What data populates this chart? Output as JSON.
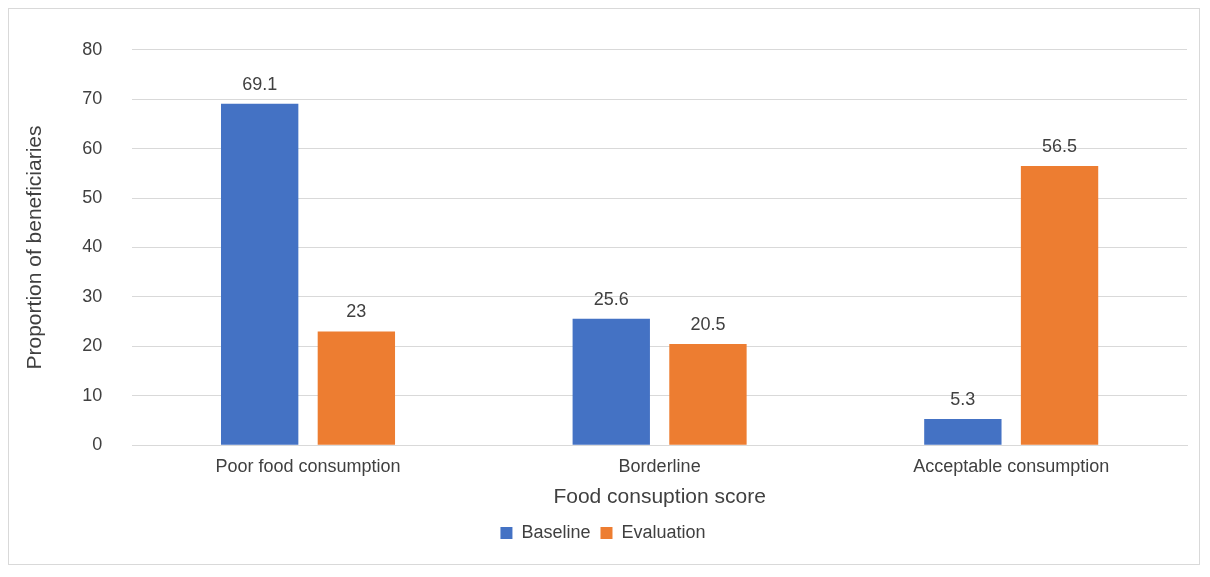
{
  "chart_data": {
    "type": "bar",
    "xlabel": "Food consuption score",
    "ylabel": "Proportion of beneficiaries",
    "categories": [
      "Poor food consumption",
      "Borderline",
      "Acceptable consumption"
    ],
    "series": [
      {
        "name": "Baseline",
        "color": "#4472c4",
        "values": [
          69.1,
          25.6,
          5.3
        ]
      },
      {
        "name": "Evaluation",
        "color": "#ed7d31",
        "values": [
          23,
          20.5,
          56.5
        ]
      }
    ],
    "ylim": [
      0,
      80
    ],
    "yticks": [
      0,
      10,
      20,
      30,
      40,
      50,
      60,
      70,
      80
    ],
    "grid": "y",
    "legend": "bottom",
    "data_labels": true
  }
}
